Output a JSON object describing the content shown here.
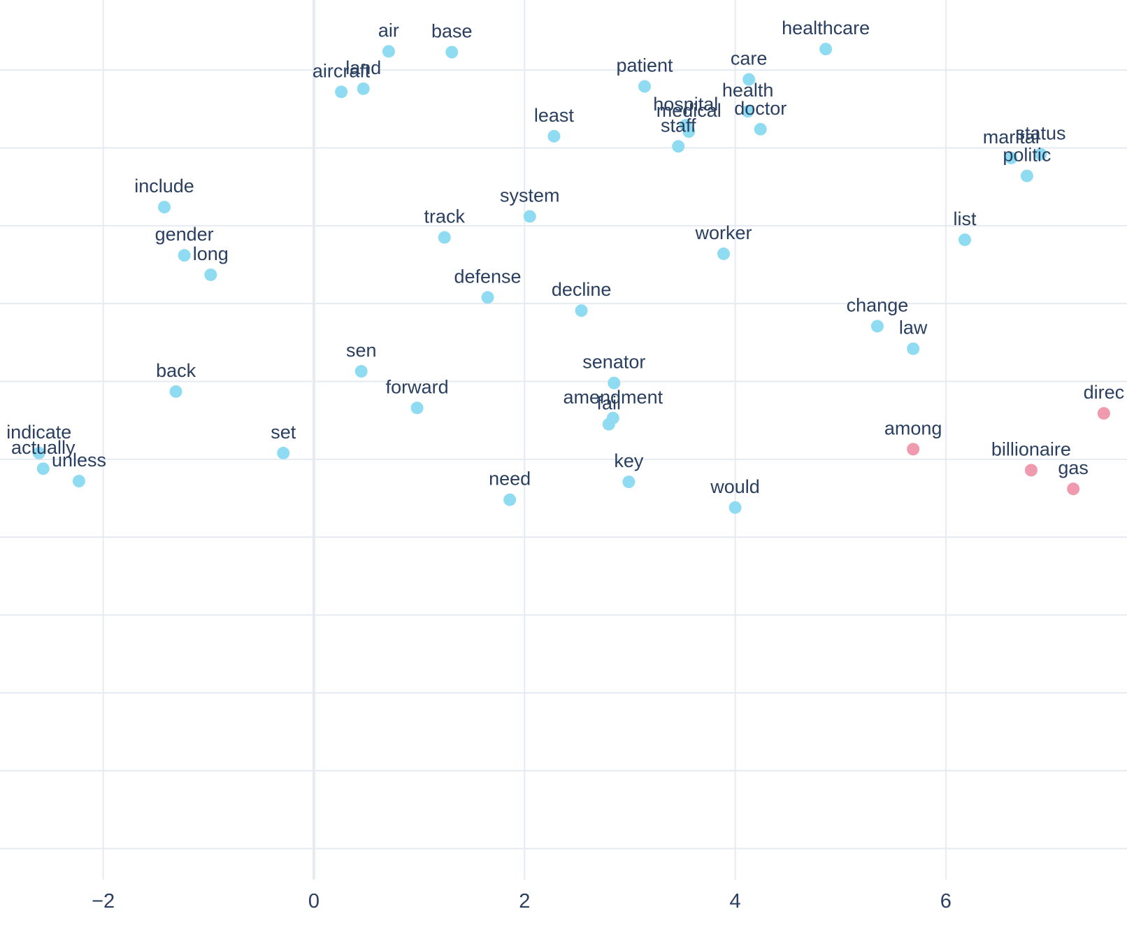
{
  "chart_data": {
    "type": "scatter",
    "title": "",
    "xlabel": "",
    "ylabel": "",
    "xlim": [
      -2.98,
      7.72
    ],
    "ylim": [
      -5.4,
      5.9
    ],
    "grid": true,
    "x_ticks": [
      -2,
      0,
      2,
      4,
      6
    ],
    "x_tick_labels": [
      "−2",
      "0",
      "2",
      "4",
      "6"
    ],
    "y_gridlines": [
      5,
      4,
      3,
      2,
      1,
      0,
      -1,
      -2,
      -3,
      -4,
      -5
    ],
    "series": [
      {
        "color": "#8fdcf2",
        "points": [
          {
            "label": "air",
            "x": 0.71,
            "y": 5.24
          },
          {
            "label": "base",
            "x": 1.31,
            "y": 5.23
          },
          {
            "label": "healthcare",
            "x": 4.86,
            "y": 5.27
          },
          {
            "label": "care",
            "x": 4.13,
            "y": 4.88
          },
          {
            "label": "patient",
            "x": 3.14,
            "y": 4.79
          },
          {
            "label": "aircraft",
            "x": 0.26,
            "y": 4.72
          },
          {
            "label": "land",
            "x": 0.47,
            "y": 4.76
          },
          {
            "label": "health",
            "x": 4.12,
            "y": 4.47
          },
          {
            "label": "hospital",
            "x": 3.53,
            "y": 4.29
          },
          {
            "label": "medical",
            "x": 3.56,
            "y": 4.21
          },
          {
            "label": "doctor",
            "x": 4.24,
            "y": 4.24
          },
          {
            "label": "least",
            "x": 2.28,
            "y": 4.15
          },
          {
            "label": "staff",
            "x": 3.46,
            "y": 4.02
          },
          {
            "label": "status",
            "x": 6.9,
            "y": 3.92
          },
          {
            "label": "marital",
            "x": 6.62,
            "y": 3.87
          },
          {
            "label": "politic",
            "x": 6.77,
            "y": 3.64
          },
          {
            "label": "include",
            "x": -1.42,
            "y": 3.24
          },
          {
            "label": "system",
            "x": 2.05,
            "y": 3.12
          },
          {
            "label": "track",
            "x": 1.24,
            "y": 2.85
          },
          {
            "label": "list",
            "x": 6.18,
            "y": 2.82
          },
          {
            "label": "gender",
            "x": -1.23,
            "y": 2.62
          },
          {
            "label": "worker",
            "x": 3.89,
            "y": 2.64
          },
          {
            "label": "long",
            "x": -0.98,
            "y": 2.37
          },
          {
            "label": "defense",
            "x": 1.65,
            "y": 2.08
          },
          {
            "label": "decline",
            "x": 2.54,
            "y": 1.91
          },
          {
            "label": "change",
            "x": 5.35,
            "y": 1.71
          },
          {
            "label": "law",
            "x": 5.69,
            "y": 1.42
          },
          {
            "label": "sen",
            "x": 0.45,
            "y": 1.13
          },
          {
            "label": "senator",
            "x": 2.85,
            "y": 0.98
          },
          {
            "label": "back",
            "x": -1.31,
            "y": 0.87
          },
          {
            "label": "forward",
            "x": 0.98,
            "y": 0.66
          },
          {
            "label": "amendment",
            "x": 2.84,
            "y": 0.53
          },
          {
            "label": "fail",
            "x": 2.8,
            "y": 0.45
          },
          {
            "label": "indicate",
            "x": -2.61,
            "y": 0.08
          },
          {
            "label": "set",
            "x": -0.29,
            "y": 0.08
          },
          {
            "label": "actually",
            "x": -2.57,
            "y": -0.12
          },
          {
            "label": "unless",
            "x": -2.23,
            "y": -0.28
          },
          {
            "label": "key",
            "x": 2.99,
            "y": -0.29
          },
          {
            "label": "need",
            "x": 1.86,
            "y": -0.52
          },
          {
            "label": "would",
            "x": 4.0,
            "y": -0.62
          }
        ]
      },
      {
        "color": "#f09ab0",
        "points": [
          {
            "label": "direc",
            "x": 7.5,
            "y": 0.59
          },
          {
            "label": "among",
            "x": 5.69,
            "y": 0.13
          },
          {
            "label": "billionaire",
            "x": 6.81,
            "y": -0.14
          },
          {
            "label": "gas",
            "x": 7.21,
            "y": -0.38
          }
        ]
      }
    ]
  }
}
